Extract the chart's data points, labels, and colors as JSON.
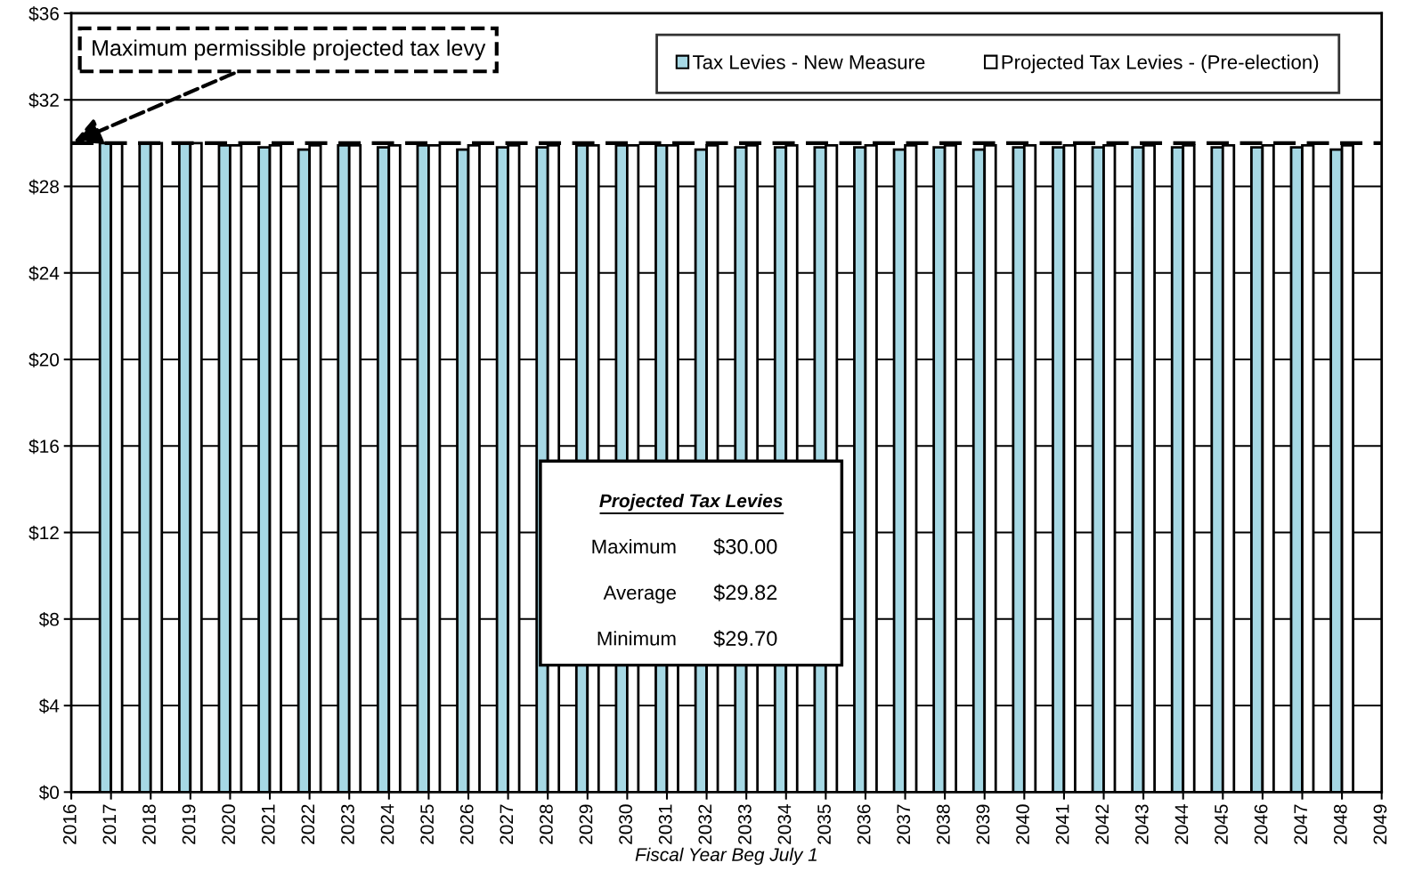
{
  "chart_data": {
    "type": "bar",
    "x": [
      2017,
      2018,
      2019,
      2020,
      2021,
      2022,
      2023,
      2024,
      2025,
      2026,
      2027,
      2028,
      2029,
      2030,
      2031,
      2032,
      2033,
      2034,
      2035,
      2036,
      2037,
      2038,
      2039,
      2040,
      2041,
      2042,
      2043,
      2044,
      2045,
      2046,
      2047,
      2048
    ],
    "series": [
      {
        "name": "Tax Levies - New Measure",
        "color": "#a6d8e4",
        "values": [
          30.0,
          30.0,
          30.0,
          29.9,
          29.8,
          29.7,
          29.9,
          29.8,
          29.9,
          29.7,
          29.8,
          29.8,
          29.9,
          29.9,
          29.9,
          29.7,
          29.8,
          29.8,
          29.8,
          29.8,
          29.7,
          29.8,
          29.7,
          29.8,
          29.8,
          29.8,
          29.8,
          29.8,
          29.8,
          29.8,
          29.8,
          29.7
        ]
      },
      {
        "name": "Projected Tax Levies - (Pre-election)",
        "color": "#ffffff",
        "values": [
          30.0,
          30.0,
          30.0,
          29.9,
          29.9,
          29.9,
          29.9,
          29.9,
          29.9,
          29.9,
          29.9,
          29.9,
          29.9,
          29.9,
          29.9,
          29.9,
          29.9,
          29.9,
          29.9,
          29.9,
          29.9,
          29.9,
          29.9,
          29.9,
          29.9,
          29.9,
          29.9,
          29.9,
          29.9,
          29.9,
          29.9,
          29.9
        ]
      }
    ],
    "xlabel": "Fiscal Year Beg July 1",
    "xlim": [
      2016,
      2049
    ],
    "xticks": [
      2016,
      2017,
      2018,
      2019,
      2020,
      2021,
      2022,
      2023,
      2024,
      2025,
      2026,
      2027,
      2028,
      2029,
      2030,
      2031,
      2032,
      2033,
      2034,
      2035,
      2036,
      2037,
      2038,
      2039,
      2040,
      2041,
      2042,
      2043,
      2044,
      2045,
      2046,
      2047,
      2048,
      2049
    ],
    "ylim": [
      0,
      36
    ],
    "yticks": [
      {
        "value": 0,
        "label": "$0"
      },
      {
        "value": 4,
        "label": "$4"
      },
      {
        "value": 8,
        "label": "$8"
      },
      {
        "value": 12,
        "label": "$12"
      },
      {
        "value": 16,
        "label": "$16"
      },
      {
        "value": 20,
        "label": "$20"
      },
      {
        "value": 24,
        "label": "$24"
      },
      {
        "value": 28,
        "label": "$28"
      },
      {
        "value": 32,
        "label": "$32"
      },
      {
        "value": 36,
        "label": "$36"
      }
    ],
    "ref_lines": [
      {
        "axis": "y",
        "value": 30,
        "label": "Maximum permissible projected tax levy",
        "color": "#000000",
        "line_style": "dashed"
      }
    ],
    "annotations": [
      "Projected Tax Levies",
      "Maximum",
      "$30.00",
      "Average",
      "$29.82",
      "Minimum",
      "$29.70"
    ],
    "grid": "y",
    "legend": "top right"
  }
}
